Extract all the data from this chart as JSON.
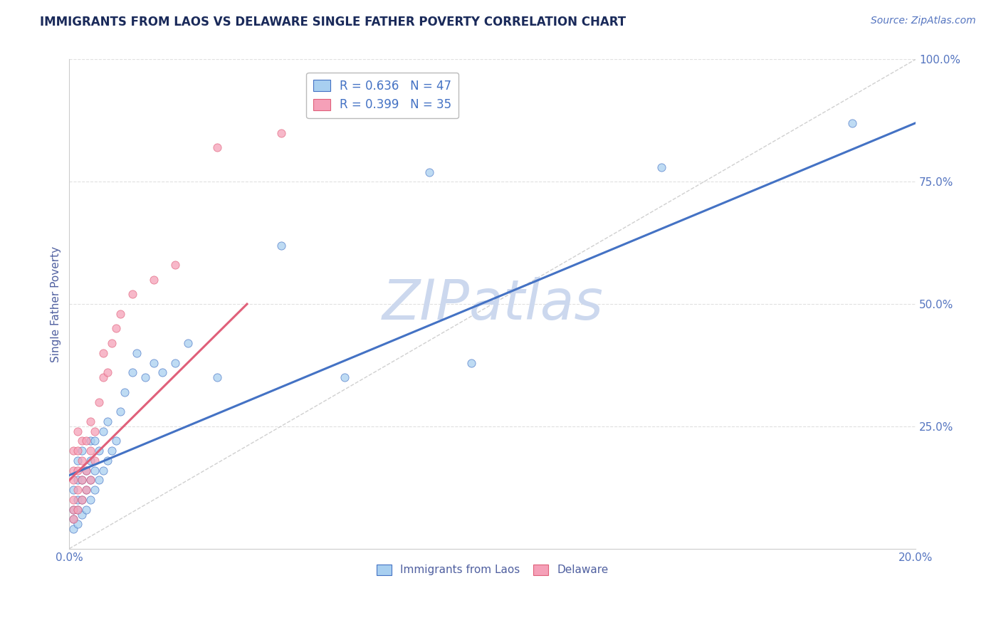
{
  "title": "IMMIGRANTS FROM LAOS VS DELAWARE SINGLE FATHER POVERTY CORRELATION CHART",
  "source_text": "Source: ZipAtlas.com",
  "ylabel": "Single Father Poverty",
  "xlim": [
    0.0,
    0.2
  ],
  "ylim": [
    0.0,
    1.0
  ],
  "legend_entries": [
    {
      "label": "R = 0.636   N = 47",
      "color": "#a8cff0"
    },
    {
      "label": "R = 0.399   N = 35",
      "color": "#f5a0b8"
    }
  ],
  "blue_color": "#a8cff0",
  "pink_color": "#f5a0b8",
  "blue_line_color": "#4472c4",
  "pink_line_color": "#e0607a",
  "diagonal_color": "#c8c8c8",
  "watermark_text": "ZIPatlas",
  "watermark_color": "#ccd8ee",
  "title_color": "#1a2a5a",
  "axis_label_color": "#5060a0",
  "tick_color": "#5575c0",
  "grid_color": "#cccccc",
  "blue_scatter_x": [
    0.001,
    0.001,
    0.001,
    0.001,
    0.002,
    0.002,
    0.002,
    0.002,
    0.002,
    0.003,
    0.003,
    0.003,
    0.003,
    0.004,
    0.004,
    0.004,
    0.005,
    0.005,
    0.005,
    0.005,
    0.006,
    0.006,
    0.006,
    0.007,
    0.007,
    0.008,
    0.008,
    0.009,
    0.009,
    0.01,
    0.011,
    0.012,
    0.013,
    0.015,
    0.016,
    0.018,
    0.02,
    0.022,
    0.025,
    0.028,
    0.035,
    0.05,
    0.065,
    0.085,
    0.095,
    0.14,
    0.185
  ],
  "blue_scatter_y": [
    0.04,
    0.06,
    0.08,
    0.12,
    0.05,
    0.08,
    0.1,
    0.14,
    0.18,
    0.07,
    0.1,
    0.14,
    0.2,
    0.08,
    0.12,
    0.16,
    0.1,
    0.14,
    0.18,
    0.22,
    0.12,
    0.16,
    0.22,
    0.14,
    0.2,
    0.16,
    0.24,
    0.18,
    0.26,
    0.2,
    0.22,
    0.28,
    0.32,
    0.36,
    0.4,
    0.35,
    0.38,
    0.36,
    0.38,
    0.42,
    0.35,
    0.62,
    0.35,
    0.77,
    0.38,
    0.78,
    0.87
  ],
  "pink_scatter_x": [
    0.001,
    0.001,
    0.001,
    0.001,
    0.001,
    0.001,
    0.002,
    0.002,
    0.002,
    0.002,
    0.002,
    0.003,
    0.003,
    0.003,
    0.003,
    0.004,
    0.004,
    0.004,
    0.005,
    0.005,
    0.005,
    0.006,
    0.006,
    0.007,
    0.008,
    0.008,
    0.009,
    0.01,
    0.011,
    0.012,
    0.015,
    0.02,
    0.025,
    0.035,
    0.05
  ],
  "pink_scatter_y": [
    0.06,
    0.08,
    0.1,
    0.14,
    0.16,
    0.2,
    0.08,
    0.12,
    0.16,
    0.2,
    0.24,
    0.1,
    0.14,
    0.18,
    0.22,
    0.12,
    0.16,
    0.22,
    0.14,
    0.2,
    0.26,
    0.18,
    0.24,
    0.3,
    0.35,
    0.4,
    0.36,
    0.42,
    0.45,
    0.48,
    0.52,
    0.55,
    0.58,
    0.82,
    0.85
  ],
  "blue_line_x": [
    0.0,
    0.2
  ],
  "blue_line_y": [
    0.15,
    0.87
  ],
  "pink_line_x": [
    0.0,
    0.042
  ],
  "pink_line_y": [
    0.14,
    0.5
  ]
}
